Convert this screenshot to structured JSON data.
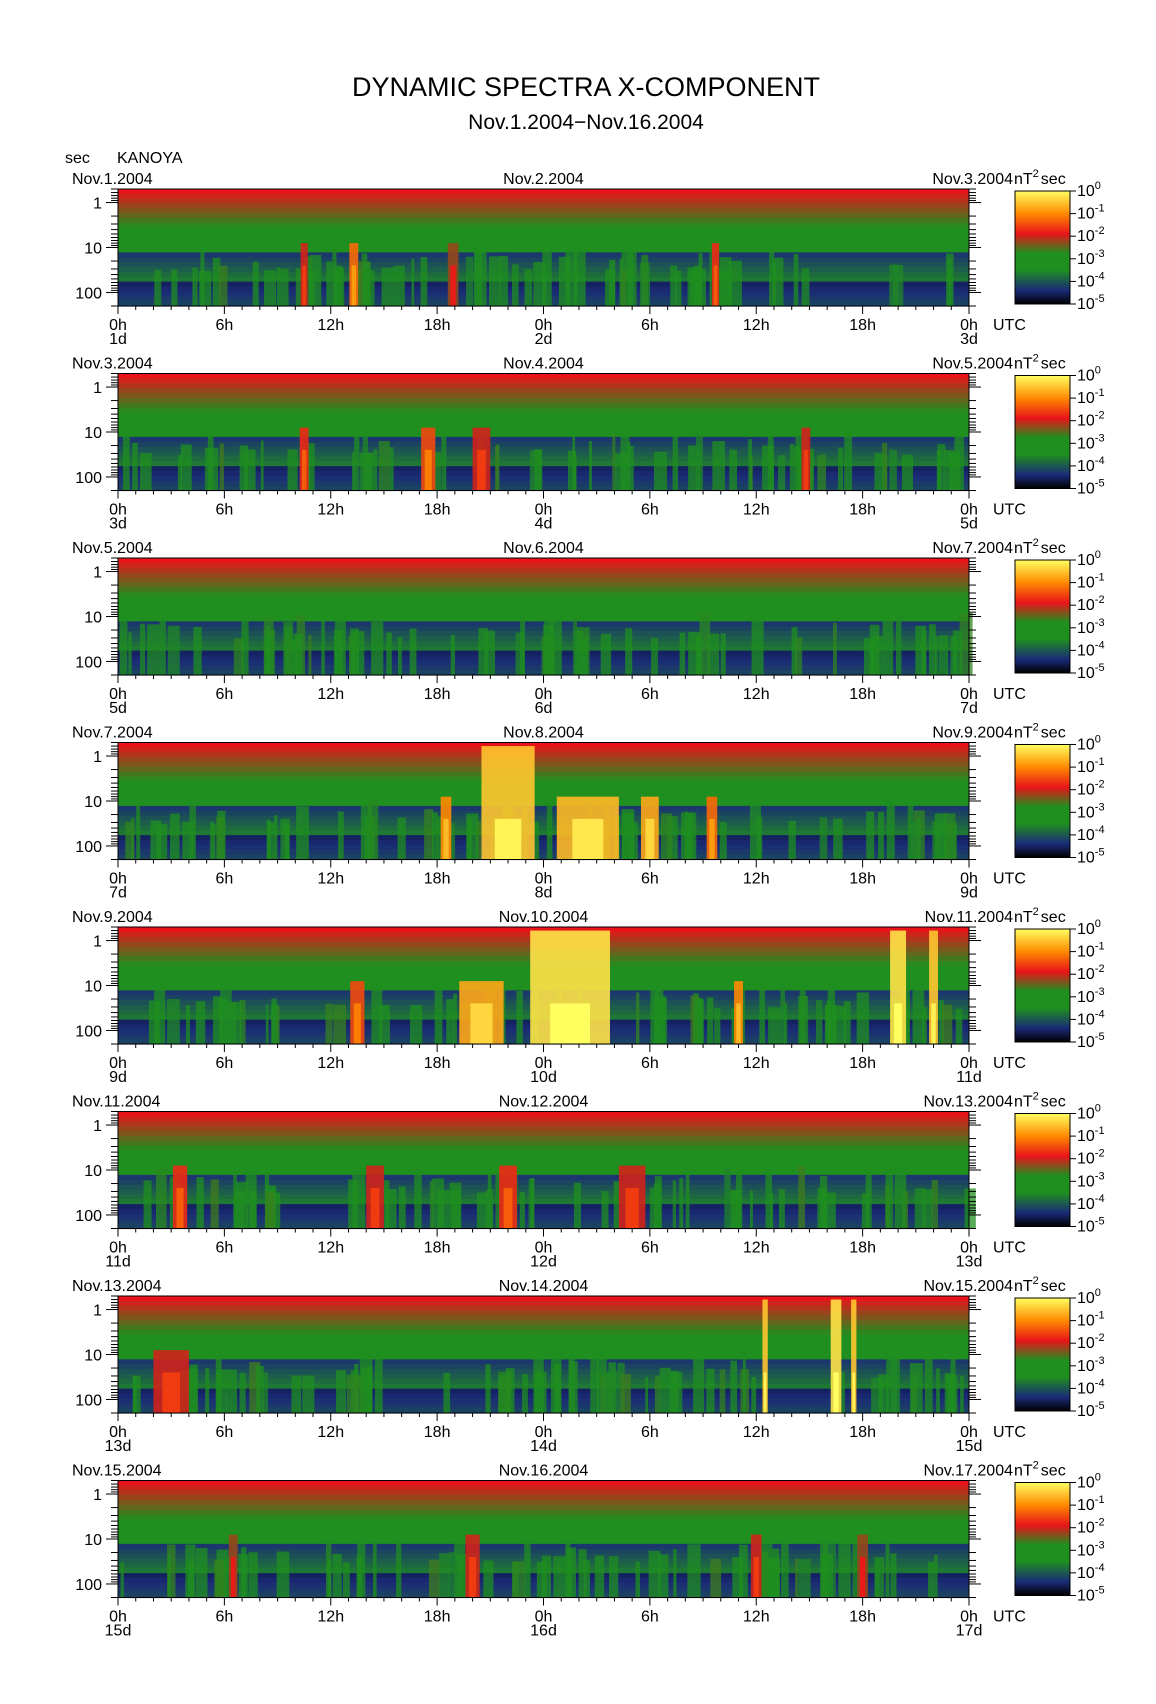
{
  "title": "DYNAMIC SPECTRA X-COMPONENT",
  "subtitle": "Nov.1.2004−Nov.16.2004",
  "y_unit_label": "sec",
  "station": "KANOYA",
  "time_unit_label": "UTC",
  "colorbar_unit_base": "nT",
  "colorbar_unit_sup": "2",
  "colorbar_unit_tail": "sec",
  "colors": {
    "background": "#ffffff",
    "colormap_low": "#000000",
    "colormap_blue": "#1a2a78",
    "colormap_green": "#1f8f1f",
    "colormap_red": "#e8141a",
    "colormap_orange": "#ff8a00",
    "colormap_yellow": "#ffff60"
  },
  "chart_data": {
    "type": "heatmap",
    "x_axis": {
      "unit": "hours (UTC)",
      "range_hours": [
        0,
        48
      ],
      "tick_labels": [
        "0h",
        "6h",
        "12h",
        "18h",
        "0h",
        "6h",
        "12h",
        "18h",
        "0h"
      ]
    },
    "y_axis": {
      "label": "sec",
      "scale": "log",
      "inverted": true,
      "range": [
        0.5,
        200
      ],
      "tick_labels": [
        "1",
        "10",
        "100"
      ],
      "tick_values": [
        1,
        10,
        100
      ]
    },
    "colorbar": {
      "unit": "nT^2 sec",
      "scale": "log",
      "tick_labels": [
        "10^0",
        "10^-1",
        "10^-2",
        "10^-3",
        "10^-4",
        "10^-5"
      ],
      "tick_exponents": [
        0,
        -1,
        -2,
        -3,
        -4,
        -5
      ]
    },
    "panels": [
      {
        "left_date": "Nov.1.2004",
        "mid_date": "Nov.2.2004",
        "right_date": "Nov.3.2004",
        "day_labels": [
          "1d",
          "2d",
          "3d"
        ],
        "events": [
          {
            "t": 13.3,
            "w": 0.5,
            "level": 0.75
          },
          {
            "t": 10.5,
            "w": 0.4,
            "level": 0.6
          },
          {
            "t": 18.9,
            "w": 0.6,
            "level": 0.55
          },
          {
            "t": 33.7,
            "w": 0.4,
            "level": 0.65
          }
        ]
      },
      {
        "left_date": "Nov.3.2004",
        "mid_date": "Nov.4.2004",
        "right_date": "Nov.5.2004",
        "day_labels": [
          "3d",
          "4d",
          "5d"
        ],
        "events": [
          {
            "t": 10.5,
            "w": 0.5,
            "level": 0.65
          },
          {
            "t": 17.5,
            "w": 0.8,
            "level": 0.7
          },
          {
            "t": 20.5,
            "w": 1.0,
            "level": 0.6
          },
          {
            "t": 38.8,
            "w": 0.5,
            "level": 0.6
          }
        ]
      },
      {
        "left_date": "Nov.5.2004",
        "mid_date": "Nov.6.2004",
        "right_date": "Nov.7.2004",
        "day_labels": [
          "5d",
          "6d",
          "7d"
        ],
        "events": []
      },
      {
        "left_date": "Nov.7.2004",
        "mid_date": "Nov.8.2004",
        "right_date": "Nov.9.2004",
        "day_labels": [
          "7d",
          "8d",
          "9d"
        ],
        "events": [
          {
            "t": 18.5,
            "w": 0.6,
            "level": 0.8
          },
          {
            "t": 22.0,
            "w": 3.0,
            "level": 0.9
          },
          {
            "t": 26.5,
            "w": 3.5,
            "level": 0.88
          },
          {
            "t": 30.0,
            "w": 1.0,
            "level": 0.85
          },
          {
            "t": 33.5,
            "w": 0.6,
            "level": 0.75
          }
        ]
      },
      {
        "left_date": "Nov.9.2004",
        "mid_date": "Nov.10.2004",
        "right_date": "Nov.11.2004",
        "day_labels": [
          "9d",
          "10d",
          "11d"
        ],
        "events": [
          {
            "t": 13.5,
            "w": 0.8,
            "level": 0.7
          },
          {
            "t": 20.5,
            "w": 2.5,
            "level": 0.85
          },
          {
            "t": 25.5,
            "w": 4.5,
            "level": 0.95
          },
          {
            "t": 35.0,
            "w": 0.5,
            "level": 0.8
          },
          {
            "t": 44.0,
            "w": 0.9,
            "level": 0.95
          },
          {
            "t": 46.0,
            "w": 0.5,
            "level": 0.9
          }
        ]
      },
      {
        "left_date": "Nov.11.2004",
        "mid_date": "Nov.12.2004",
        "right_date": "Nov.13.2004",
        "day_labels": [
          "11d",
          "12d",
          "13d"
        ],
        "events": [
          {
            "t": 3.5,
            "w": 0.8,
            "level": 0.65
          },
          {
            "t": 14.5,
            "w": 1.0,
            "level": 0.6
          },
          {
            "t": 22.0,
            "w": 1.0,
            "level": 0.65
          },
          {
            "t": 29.0,
            "w": 1.5,
            "level": 0.6
          }
        ]
      },
      {
        "left_date": "Nov.13.2004",
        "mid_date": "Nov.14.2004",
        "right_date": "Nov.15.2004",
        "day_labels": [
          "13d",
          "14d",
          "15d"
        ],
        "events": [
          {
            "t": 3.0,
            "w": 2.0,
            "level": 0.6
          },
          {
            "t": 36.5,
            "w": 0.3,
            "level": 0.9
          },
          {
            "t": 40.5,
            "w": 0.6,
            "level": 0.95
          },
          {
            "t": 41.5,
            "w": 0.3,
            "level": 0.9
          }
        ]
      },
      {
        "left_date": "Nov.15.2004",
        "mid_date": "Nov.16.2004",
        "right_date": "Nov.17.2004",
        "day_labels": [
          "15d",
          "16d",
          "17d"
        ],
        "events": [
          {
            "t": 20.0,
            "w": 0.8,
            "level": 0.6
          },
          {
            "t": 6.5,
            "w": 0.5,
            "level": 0.55
          },
          {
            "t": 36.0,
            "w": 0.6,
            "level": 0.6
          },
          {
            "t": 42.0,
            "w": 0.6,
            "level": 0.55
          }
        ]
      }
    ]
  }
}
